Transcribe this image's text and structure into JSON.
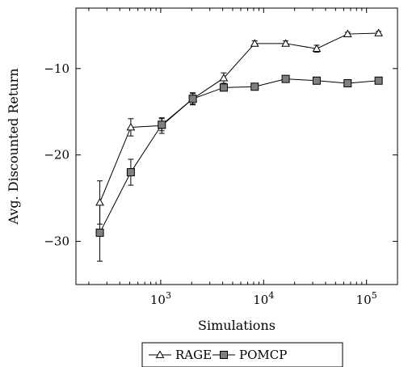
{
  "chart_data": {
    "type": "line",
    "title": "",
    "xlabel": "Simulations",
    "ylabel": "Avg. Discounted Return",
    "xscale": "log",
    "xlim": [
      150,
      200000
    ],
    "ylim": [
      -35,
      -3
    ],
    "x_tick_labels": [
      {
        "value": 1000,
        "base": "10",
        "exp": "3"
      },
      {
        "value": 10000,
        "base": "10",
        "exp": "4"
      },
      {
        "value": 100000,
        "base": "10",
        "exp": "5"
      }
    ],
    "y_ticks": [
      -30,
      -20,
      -10
    ],
    "y_tick_labels": [
      "−30",
      "−20",
      "−10"
    ],
    "grid": false,
    "legend_position": "bottom",
    "series": [
      {
        "name": "RAGE",
        "marker": "triangle",
        "color": "#000000",
        "x": [
          256,
          512,
          1024,
          2048,
          4096,
          8192,
          16384,
          32768,
          65536,
          131072
        ],
        "y": [
          -25.5,
          -16.8,
          -16.6,
          -13.5,
          -11.1,
          -7.1,
          -7.1,
          -7.7,
          -6.0,
          -5.9
        ],
        "err": [
          2.5,
          1.0,
          0.9,
          0.6,
          0.6,
          0.3,
          0.3,
          0.4,
          0.2,
          0.2
        ]
      },
      {
        "name": "POMCP",
        "marker": "square",
        "color": "#7f7f7f",
        "x": [
          256,
          512,
          1024,
          2048,
          4096,
          8192,
          16384,
          32768,
          65536,
          131072
        ],
        "y": [
          -29.0,
          -22.0,
          -16.5,
          -13.5,
          -12.2,
          -12.1,
          -11.2,
          -11.4,
          -11.7,
          -11.4
        ],
        "err": [
          3.3,
          1.5,
          0.7,
          0.7,
          0.4,
          0.3,
          0.3,
          0.3,
          0.3,
          0.3
        ]
      }
    ]
  }
}
